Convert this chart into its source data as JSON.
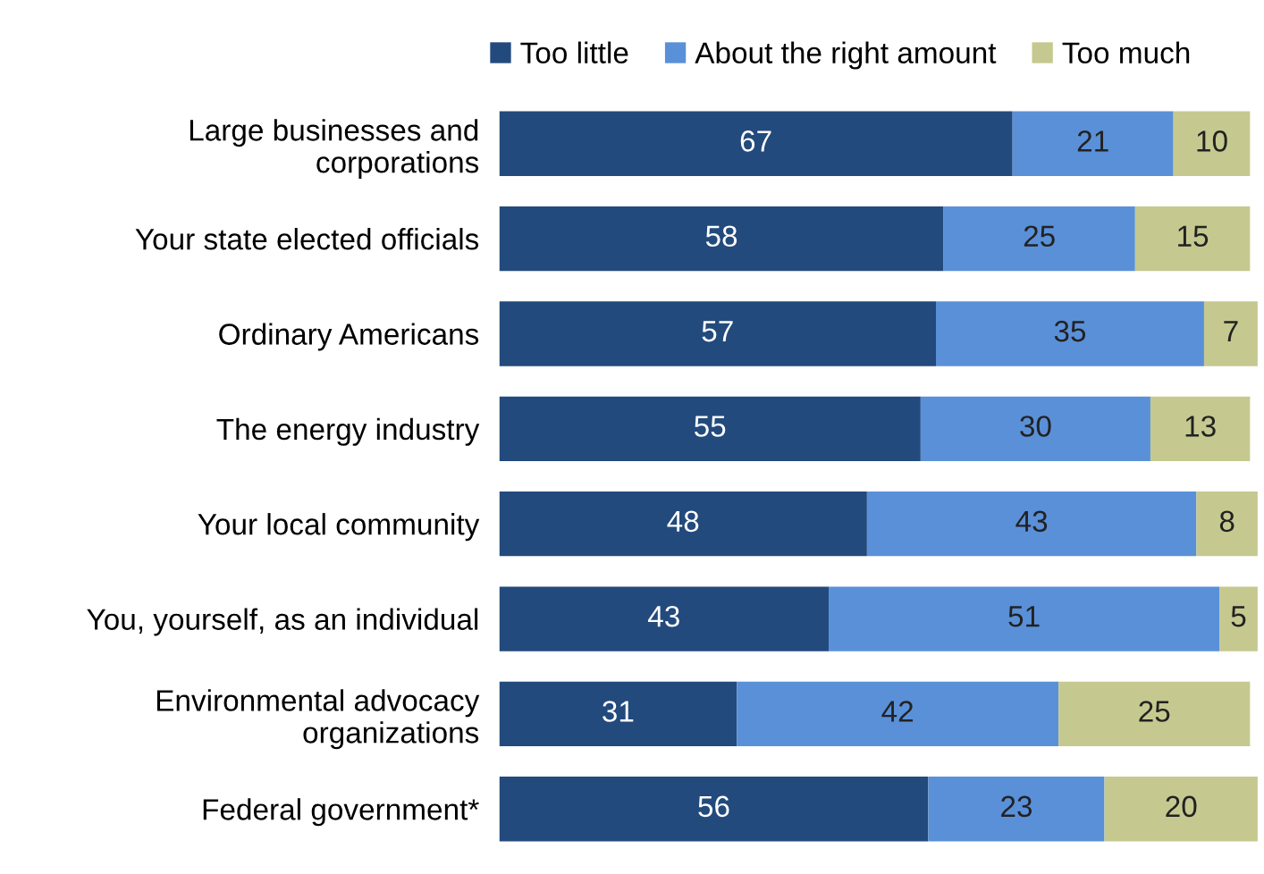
{
  "chart_data": {
    "type": "bar",
    "orientation": "horizontal",
    "stacked": true,
    "categories": [
      "Large businesses and\ncorporations",
      "Your state elected officials",
      "Ordinary Americans",
      "The energy industry",
      "Your local community",
      "You, yourself, as an individual",
      "Environmental advocacy\norganizations",
      "Federal government*"
    ],
    "series": [
      {
        "name": "Too little",
        "color": "#234a7c",
        "values": [
          67,
          58,
          57,
          55,
          48,
          43,
          31,
          56
        ]
      },
      {
        "name": "About the right amount",
        "color": "#5a90d8",
        "values": [
          21,
          25,
          35,
          30,
          43,
          51,
          42,
          23
        ]
      },
      {
        "name": "Too much",
        "color": "#c5c98f",
        "values": [
          10,
          15,
          7,
          13,
          8,
          5,
          25,
          20
        ]
      }
    ],
    "tick_labels": "y",
    "data_labels": true,
    "legend": "top",
    "grid": false
  }
}
